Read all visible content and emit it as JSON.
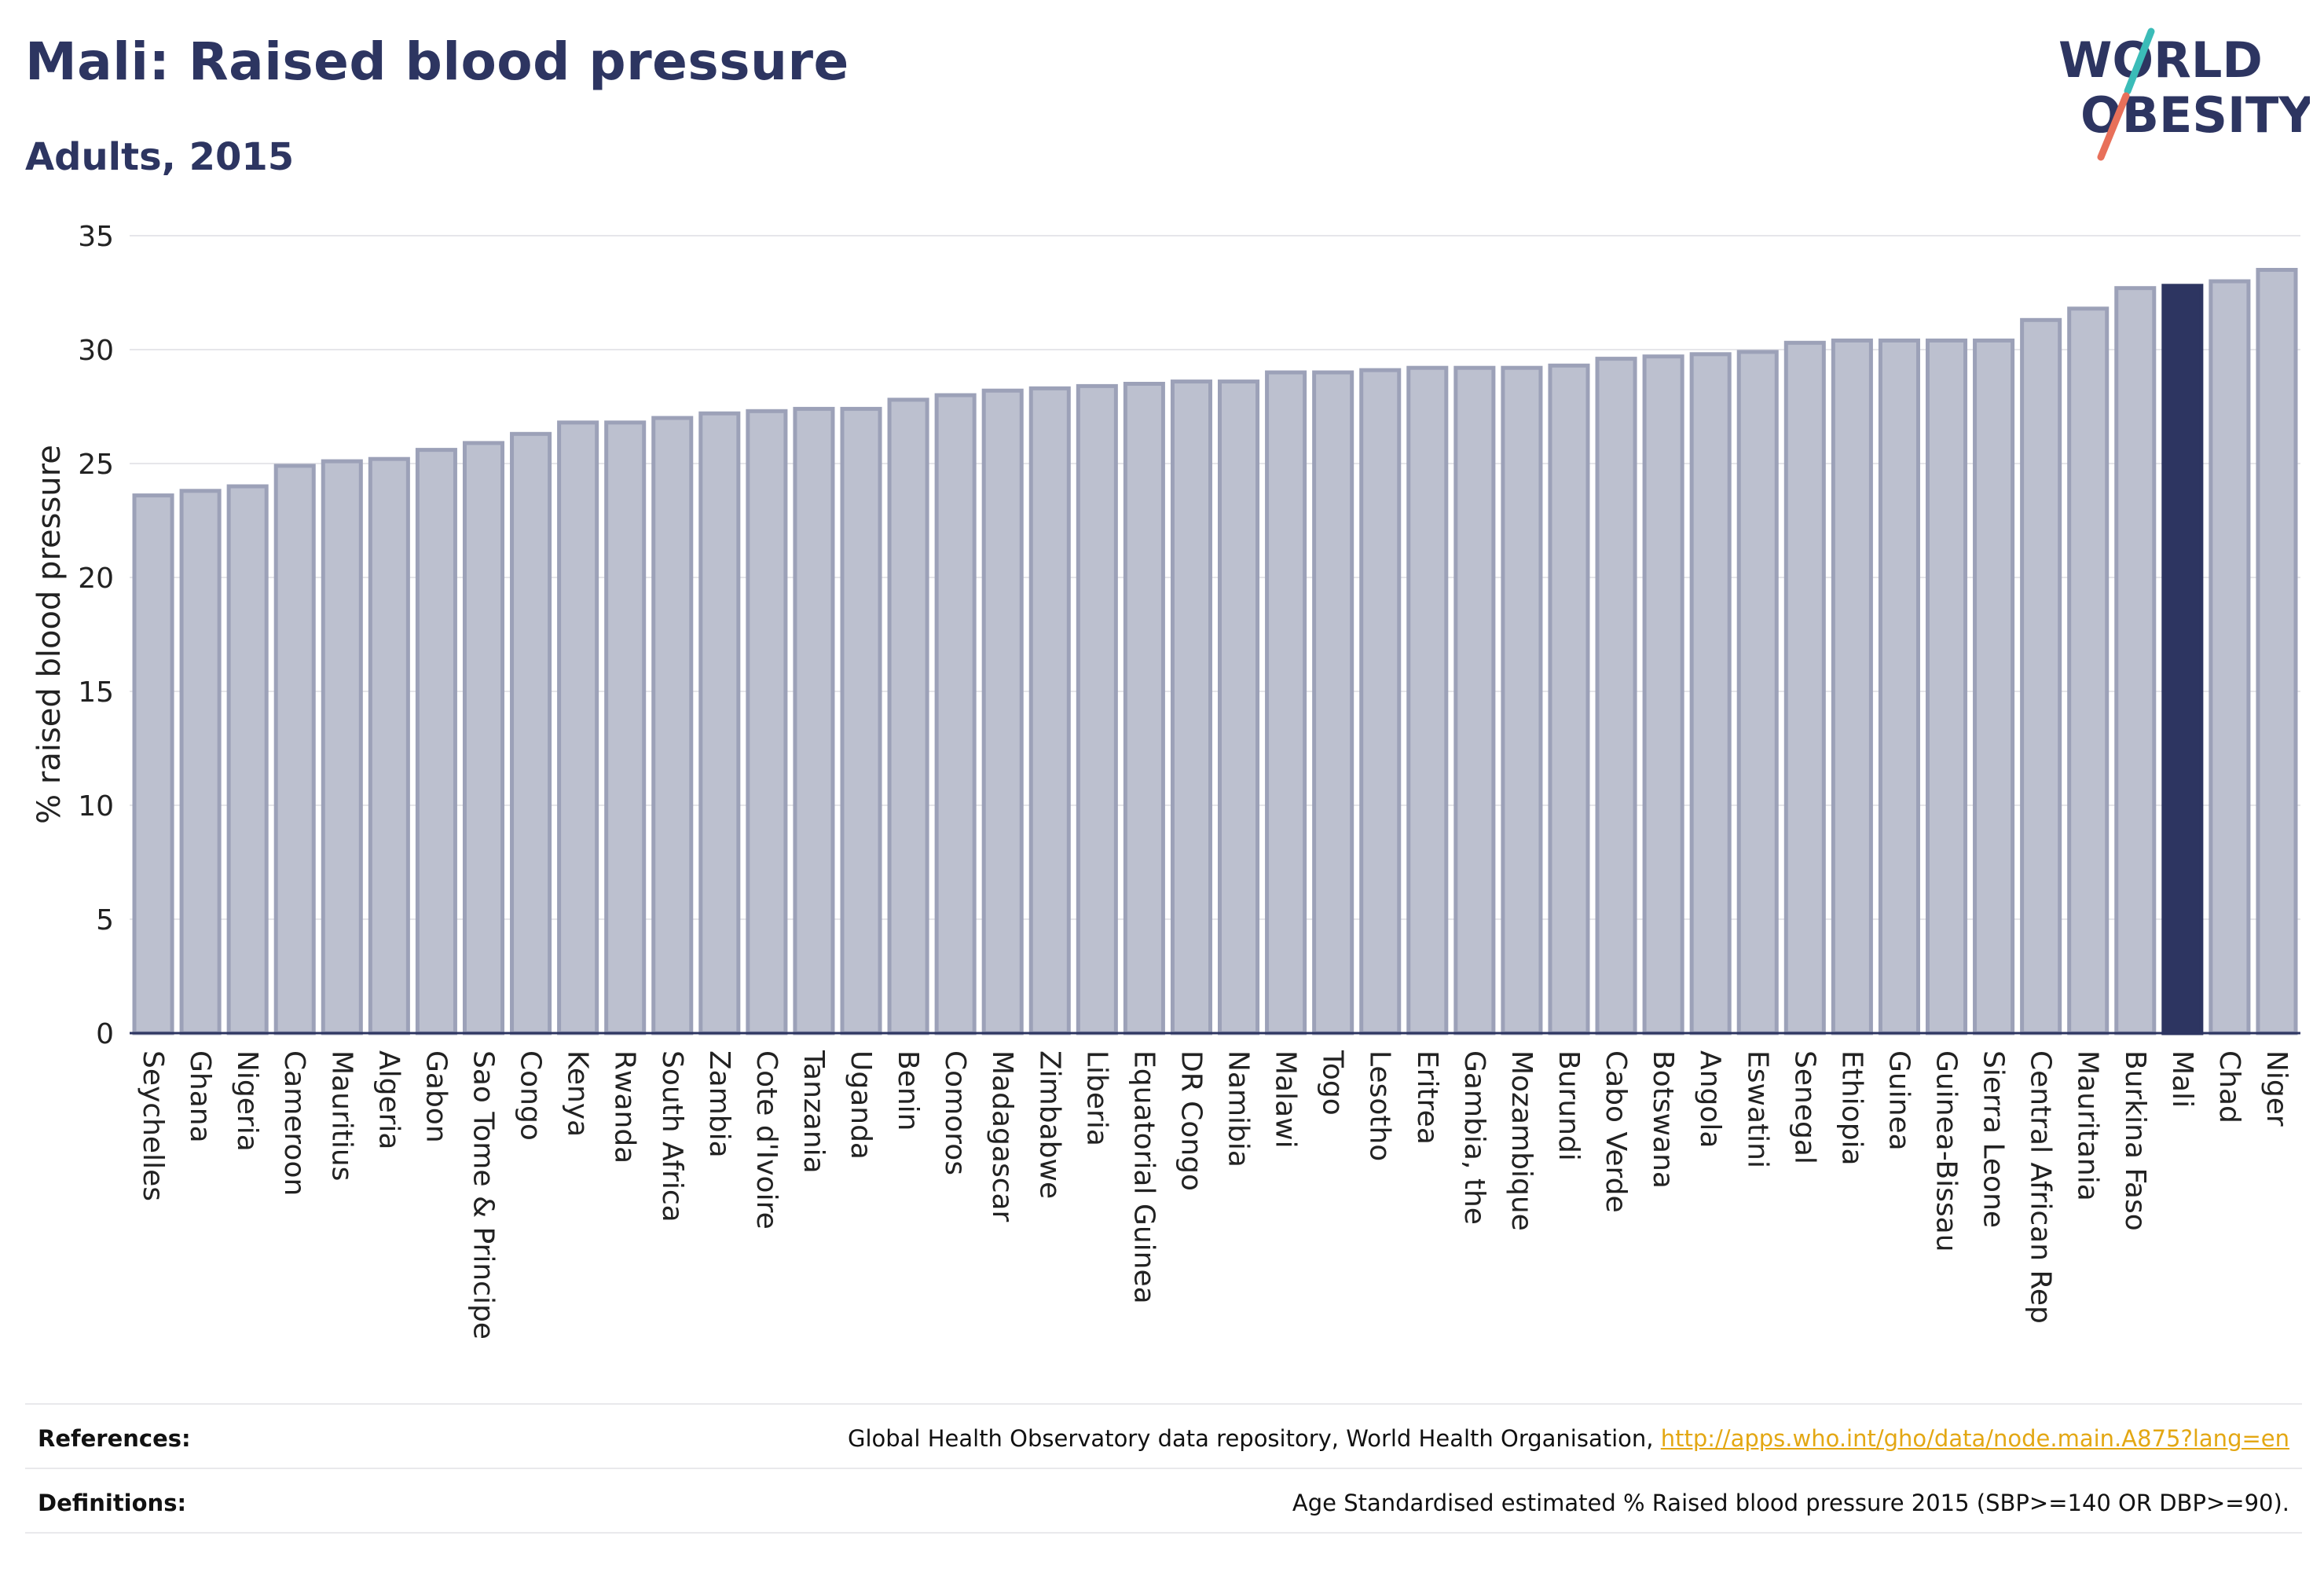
{
  "header": {
    "title": "Mali: Raised blood pressure",
    "subtitle": "Adults, 2015"
  },
  "logo": {
    "line1": "WORLD",
    "line2": "OBESITY",
    "text_color": "#2d3561",
    "slash_colors": [
      "#3bbcb8",
      "#e8705a"
    ]
  },
  "chart_data": {
    "type": "bar",
    "title": "Mali: Raised blood pressure",
    "subtitle": "Adults, 2015",
    "xlabel": "",
    "ylabel": "% raised blood pressure",
    "ylim": [
      0,
      35
    ],
    "yticks": [
      0,
      5,
      10,
      15,
      20,
      25,
      30,
      35
    ],
    "grid": true,
    "highlight": "Mali",
    "colors": {
      "bar": "#bcc0cf",
      "bar_edge": "#9ca1b8",
      "highlight": "#2d3561",
      "axis": "#2d3561",
      "grid": "#e6e6ea"
    },
    "categories": [
      "Seychelles",
      "Ghana",
      "Nigeria",
      "Cameroon",
      "Mauritius",
      "Algeria",
      "Gabon",
      "Sao Tome & Principe",
      "Congo",
      "Kenya",
      "Rwanda",
      "South Africa",
      "Zambia",
      "Cote d'Ivoire",
      "Tanzania",
      "Uganda",
      "Benin",
      "Comoros",
      "Madagascar",
      "Zimbabwe",
      "Liberia",
      "Equatorial Guinea",
      "DR Congo",
      "Namibia",
      "Malawi",
      "Togo",
      "Lesotho",
      "Eritrea",
      "Gambia, the",
      "Mozambique",
      "Burundi",
      "Cabo Verde",
      "Botswana",
      "Angola",
      "Eswatini",
      "Senegal",
      "Ethiopia",
      "Guinea",
      "Guinea-Bissau",
      "Sierra Leone",
      "Central African Rep",
      "Mauritania",
      "Burkina Faso",
      "Mali",
      "Chad",
      "Niger"
    ],
    "values": [
      23.6,
      23.8,
      24.0,
      24.9,
      25.1,
      25.2,
      25.6,
      25.9,
      26.3,
      26.8,
      26.8,
      27.0,
      27.2,
      27.3,
      27.4,
      27.4,
      27.8,
      28.0,
      28.2,
      28.3,
      28.4,
      28.5,
      28.6,
      28.6,
      29.0,
      29.0,
      29.1,
      29.2,
      29.2,
      29.2,
      29.3,
      29.6,
      29.7,
      29.8,
      29.9,
      30.3,
      30.4,
      30.4,
      30.4,
      30.4,
      31.3,
      31.8,
      32.7,
      32.8,
      33.0,
      33.5
    ]
  },
  "footer": {
    "references_label": "References:",
    "references_text": "Global Health Observatory data repository, World Health Organisation, ",
    "references_link": "http://apps.who.int/gho/data/node.main.A875?lang=en",
    "definitions_label": "Definitions:",
    "definitions_text": "Age Standardised estimated % Raised blood pressure 2015 (SBP>=140 OR DBP>=90)."
  }
}
